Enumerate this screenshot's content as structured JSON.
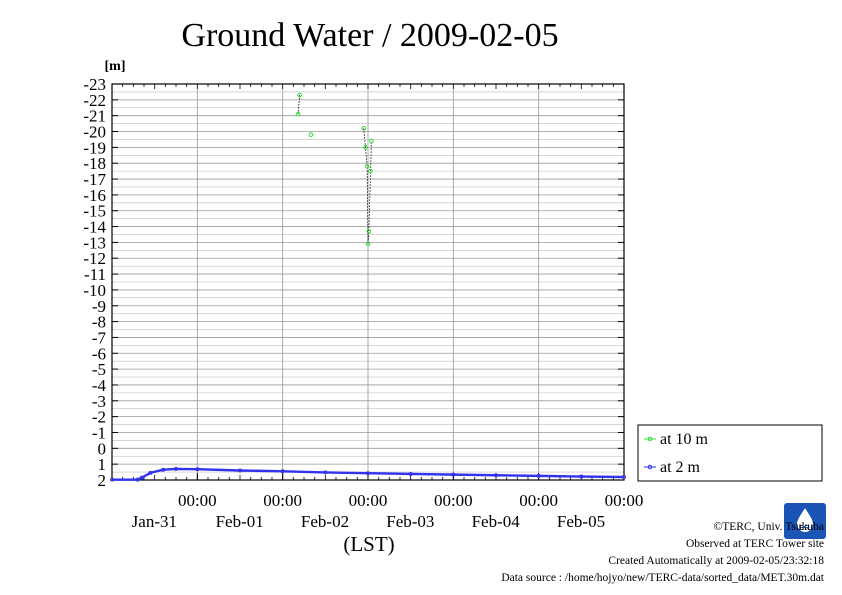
{
  "chart_data": {
    "type": "line",
    "title": "Ground Water / 2009-02-05",
    "ylabel": "[m]",
    "xlabel": "(LST)",
    "ylim": [
      2,
      -23
    ],
    "y_inverted": true,
    "y_ticks": [
      2,
      1,
      0,
      -1,
      -2,
      -3,
      -4,
      -5,
      -6,
      -7,
      -8,
      -9,
      -10,
      -11,
      -12,
      -13,
      -14,
      -15,
      -16,
      -17,
      -18,
      -19,
      -20,
      -21,
      -22,
      -23
    ],
    "xlim": [
      0,
      6
    ],
    "x_unit": "days from Jan-30 00:00",
    "x_ticks": [
      {
        "x": 1,
        "time": "00:00",
        "date": "Jan-31"
      },
      {
        "x": 2,
        "time": "00:00",
        "date": "Feb-01"
      },
      {
        "x": 3,
        "time": "00:00",
        "date": "Feb-02"
      },
      {
        "x": 4,
        "time": "00:00",
        "date": "Feb-03"
      },
      {
        "x": 5,
        "time": "00:00",
        "date": "Feb-04"
      },
      {
        "x": 6,
        "time": "00:00",
        "date": "Feb-05"
      }
    ],
    "grid": true,
    "legend_position": "right",
    "series": [
      {
        "name": "at 10 m",
        "color": "#33dd33",
        "segments": [
          [
            [
              2.2,
              -22.3
            ],
            [
              2.18,
              -21.1
            ]
          ],
          [
            [
              2.33,
              -19.8
            ]
          ],
          [
            [
              2.95,
              -20.2
            ],
            [
              2.97,
              -19.0
            ],
            [
              2.99,
              -17.8
            ],
            [
              3.0,
              -12.9
            ],
            [
              3.01,
              -13.7
            ],
            [
              3.03,
              -17.5
            ],
            [
              3.04,
              -19.4
            ]
          ]
        ]
      },
      {
        "name": "at 2 m",
        "color": "#3333ee",
        "points": [
          [
            0,
            1.98
          ],
          [
            0.3,
            1.98
          ],
          [
            0.35,
            1.85
          ],
          [
            0.45,
            1.55
          ],
          [
            0.6,
            1.35
          ],
          [
            0.75,
            1.3
          ],
          [
            1.0,
            1.32
          ],
          [
            1.5,
            1.4
          ],
          [
            2.0,
            1.45
          ],
          [
            2.5,
            1.52
          ],
          [
            3.0,
            1.57
          ],
          [
            3.5,
            1.62
          ],
          [
            4.0,
            1.66
          ],
          [
            4.5,
            1.7
          ],
          [
            5.0,
            1.74
          ],
          [
            5.5,
            1.78
          ],
          [
            6.0,
            1.81
          ]
        ]
      }
    ]
  },
  "footer": {
    "copyright": "©TERC, Univ. Tsukuba",
    "observed": "Observed at TERC Tower site",
    "created": "Created Automatically at 2009-02-05/23:32:18",
    "source": "Data source : /home/hojyo/new/TERC-data/sorted_data/MET.30m.dat"
  },
  "logo": {
    "text": "TERC",
    "color": "#1a55b5"
  }
}
